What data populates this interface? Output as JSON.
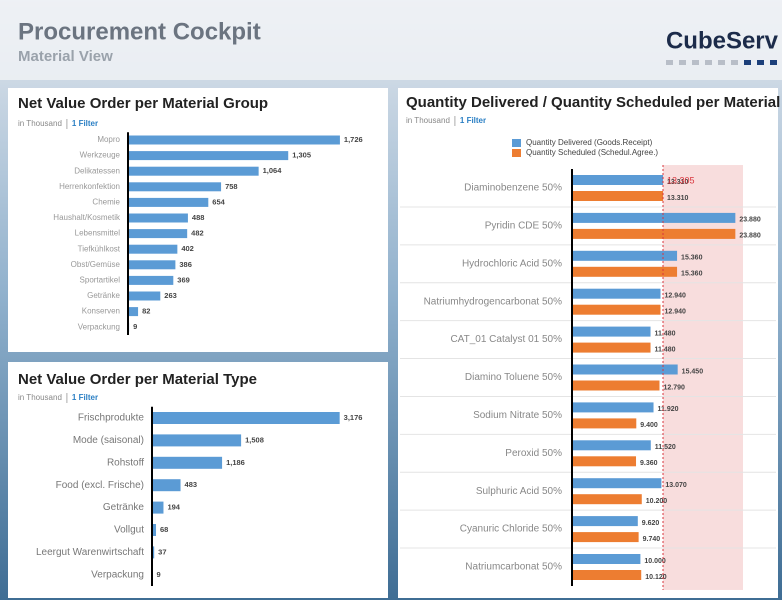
{
  "header": {
    "title": "Procurement Cockpit",
    "subtitle": "Material View",
    "logo": "CubeServ"
  },
  "chart_data": [
    {
      "type": "bar",
      "title": "Net Value Order per Material Group",
      "unit": "in Thousand",
      "filter": "1 Filter",
      "categories": [
        "Mopro",
        "Werkzeuge",
        "Delikatessen",
        "Herrenkonfektion",
        "Chemie",
        "Haushalt/Kosmetik",
        "Lebensmittel",
        "Tiefkühlkost",
        "Obst/Gemüse",
        "Sportartikel",
        "Getränke",
        "Konserven",
        "Verpackung"
      ],
      "values": [
        1726,
        1305,
        1064,
        758,
        654,
        488,
        482,
        402,
        386,
        369,
        263,
        82,
        9
      ],
      "value_labels": [
        "1,726",
        "1,305",
        "1,064",
        "758",
        "654",
        "488",
        "482",
        "402",
        "386",
        "369",
        "263",
        "82",
        "9"
      ],
      "color": "#5b9bd5",
      "xlim": [
        0,
        1800
      ]
    },
    {
      "type": "bar",
      "title": "Net Value Order per Material Type",
      "unit": "in Thousand",
      "filter": "1 Filter",
      "categories": [
        "Frischprodukte",
        "Mode (saisonal)",
        "Rohstoff",
        "Food (excl. Frische)",
        "Getränke",
        "Vollgut",
        "Leergut Warenwirtschaft",
        "Verpackung"
      ],
      "values": [
        3176,
        1508,
        1186,
        483,
        194,
        68,
        37,
        9
      ],
      "value_labels": [
        "3,176",
        "1,508",
        "1,186",
        "483",
        "194",
        "68",
        "37",
        "9"
      ],
      "color": "#5b9bd5",
      "xlim": [
        0,
        3300
      ]
    },
    {
      "type": "bar",
      "title": "Quantity Delivered / Quantity Scheduled per Material",
      "unit": "in Thousand",
      "filter": "1 Filter",
      "categories": [
        "Diaminobenzene 50%",
        "Pyridin CDE 50%",
        "Hydrochloric Acid 50%",
        "Natriumhydrogencarbonat 50%",
        "CAT_01 Catalyst 01 50%",
        "Diamino Toluene 50%",
        "Sodium Nitrate 50%",
        "Peroxid 50%",
        "Sulphuric Acid 50%",
        "Cyanuric Chloride 50%",
        "Natriumcarbonat 50%"
      ],
      "series": [
        {
          "name": "Quantity Delivered (Goods.Receipt)",
          "color": "#5b9bd5",
          "values": [
            13310,
            23880,
            15360,
            12940,
            11480,
            15450,
            11920,
            11520,
            13070,
            9620,
            10000
          ],
          "value_labels": [
            "13.310",
            "23.880",
            "15.360",
            "12.940",
            "11.480",
            "15.450",
            "11.920",
            "11.520",
            "13.070",
            "9.620",
            "10.000"
          ]
        },
        {
          "name": "Quantity Scheduled (Schedul.Agree.)",
          "color": "#ed7d31",
          "values": [
            13310,
            23880,
            15360,
            12940,
            11480,
            12790,
            9400,
            9360,
            10200,
            9740,
            10120
          ],
          "value_labels": [
            "13.310",
            "23.880",
            "15.360",
            "12.940",
            "11.480",
            "12.790",
            "9.400",
            "9.360",
            "10.200",
            "9.740",
            "10.120"
          ]
        }
      ],
      "reference": {
        "value": 13305,
        "label": "13.305",
        "color": "#d9363e"
      },
      "xlim": [
        0,
        25000
      ]
    }
  ]
}
